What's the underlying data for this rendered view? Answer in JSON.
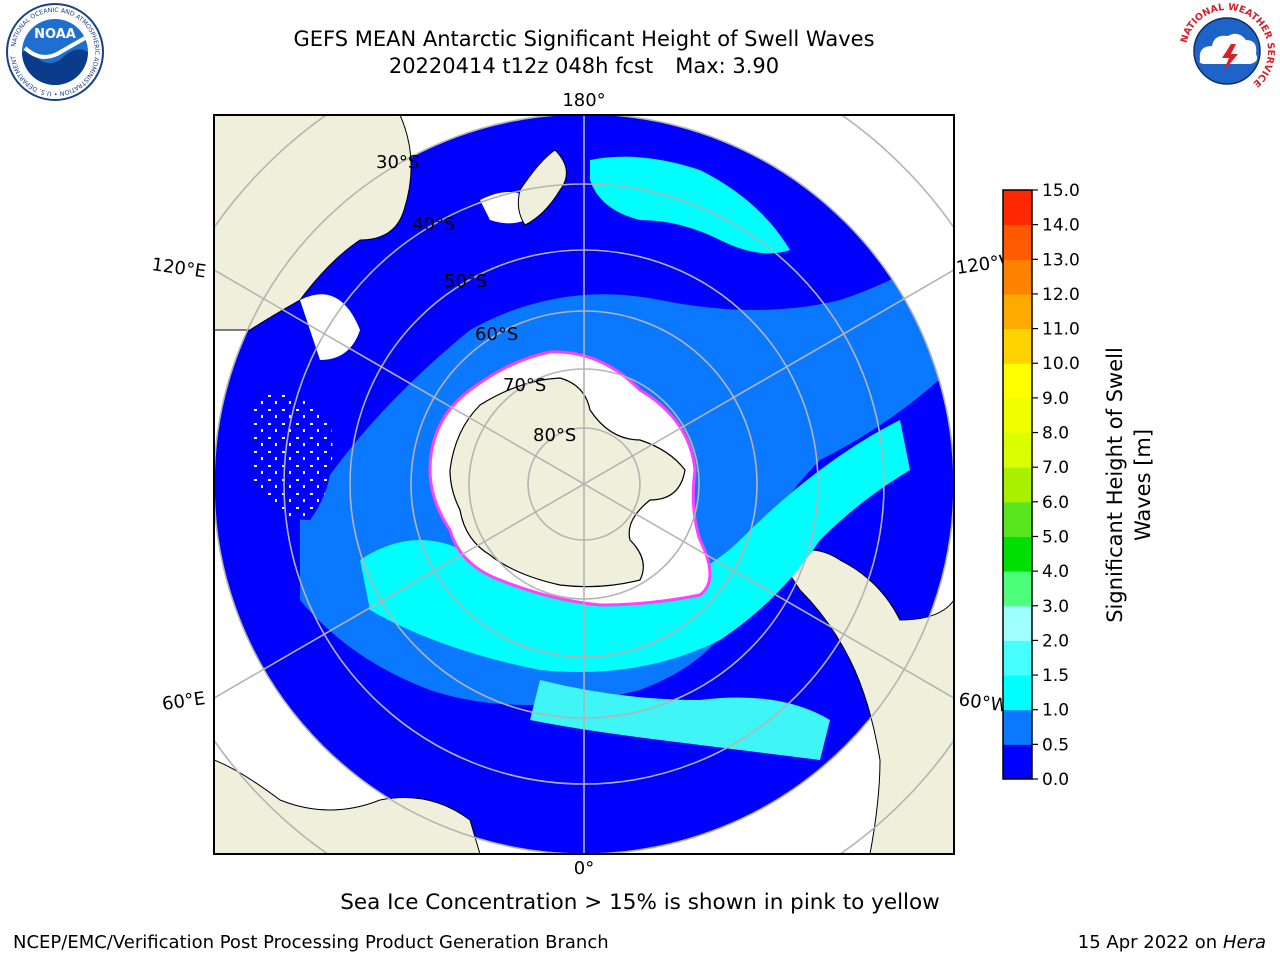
{
  "title": {
    "line1": "GEFS MEAN Antarctic Significant Height of Swell Waves",
    "line2_date": "20220414 t12z 048h fcst",
    "line2_max": "Max: 3.90"
  },
  "map": {
    "projection": "south-polar-stereographic",
    "meridian_labels": {
      "top": "180°",
      "bottom": "0°",
      "upper_left": "120°E",
      "upper_right": "120°W",
      "lower_left": "60°E",
      "lower_right": "60°W"
    },
    "latitude_labels": [
      "30°S",
      "40°S",
      "50°S",
      "60°S",
      "70°S",
      "80°S"
    ],
    "colors": {
      "land": "#efefdc",
      "ocean_0_0.5": "#0000ff",
      "ocean_0.5_1.0": "#0a78ff",
      "ocean_1.0_1.5": "#00ffff",
      "ocean_1.5_2.0": "#40f5f5",
      "grid": "#b4b4b4",
      "ice_edge": "#ff40ff"
    }
  },
  "colorbar": {
    "label_line1": "Significant Height of Swell",
    "label_line2": "Waves [m]",
    "ticks": [
      "0.0",
      "0.5",
      "1.0",
      "1.5",
      "2.0",
      "3.0",
      "4.0",
      "5.0",
      "6.0",
      "7.0",
      "8.0",
      "9.0",
      "10.0",
      "11.0",
      "12.0",
      "13.0",
      "14.0",
      "15.0"
    ],
    "colors": [
      "#0000ff",
      "#0a78ff",
      "#00ffff",
      "#46ffff",
      "#a0ffff",
      "#4dff7a",
      "#00e000",
      "#5ae61e",
      "#a8f000",
      "#d9ff00",
      "#f0ff00",
      "#ffff00",
      "#ffd200",
      "#ffaa00",
      "#ff8200",
      "#ff5a00",
      "#ff2800"
    ]
  },
  "logos": {
    "noaa": {
      "center_text": "NOAA",
      "ring_text": "NATIONAL OCEANIC AND ATMOSPHERIC ADMINISTRATION • U.S. DEPARTMENT OF COMMERCE"
    },
    "nws": {
      "ring_text": "NATIONAL WEATHER SERVICE"
    }
  },
  "footer": {
    "note": "Sea Ice Concentration > 15% is shown in pink to yellow",
    "left": "NCEP/EMC/Verification Post Processing Product Generation Branch",
    "right_date": "15 Apr 2022 on",
    "right_machine": "Hera"
  }
}
